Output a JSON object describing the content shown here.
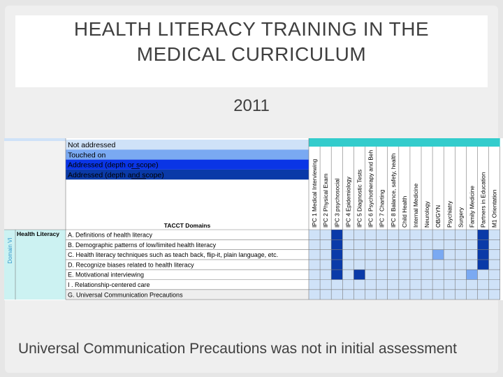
{
  "slide": {
    "title_line1": "HEALTH LITERACY TRAINING IN THE",
    "title_line2": "MEDICAL CURRICULUM",
    "year": "2011",
    "caption": "Universal Communication Precautions was not in initial assessment"
  },
  "legend": [
    {
      "label": "Not addressed",
      "color": "#cfe2f8"
    },
    {
      "label": "Touched on",
      "color": "#7aa9f2"
    },
    {
      "label": "Addressed (depth or scope)",
      "color": "#0a35e6"
    },
    {
      "label": "Addressed (depth and scope)",
      "color": "#0a3aa8"
    }
  ],
  "table": {
    "domains_header": "TACCT Domains",
    "domain_side_label": "Domain VI",
    "domain_name": "Health Literacy",
    "columns": [
      "IPC 1 Medical Interviewing",
      "IPC 2 Physical Exam",
      "IPC 3 psychosocial",
      "IPC 4 Epidemiology",
      "IPC 5 Diagnostic Tests",
      "IPC 6 Psychotherapy and Beh",
      "IPC 7 Charting",
      "IPC 8 Balance, safety, health",
      "Child Health",
      "Internal Medicine",
      "Neurology",
      "OB/GYN",
      "Psychiatry",
      "Surgery",
      "Family Medicine",
      "Partners in Education",
      "M1 Orientation"
    ],
    "rows": [
      {
        "label": "A. Definitions of health literacy",
        "cells": [
          0,
          0,
          3,
          0,
          0,
          0,
          0,
          0,
          0,
          0,
          0,
          0,
          0,
          0,
          0,
          3,
          0
        ]
      },
      {
        "label": "B. Demographic patterns of low/limited health literacy",
        "cells": [
          0,
          0,
          3,
          0,
          0,
          0,
          0,
          0,
          0,
          0,
          0,
          0,
          0,
          0,
          0,
          3,
          0
        ]
      },
      {
        "label": "C. Health literacy techniques such as teach back, flip-it, plain language, etc.",
        "cells": [
          0,
          0,
          3,
          0,
          0,
          0,
          0,
          0,
          0,
          0,
          0,
          1,
          0,
          0,
          0,
          3,
          0
        ]
      },
      {
        "label": "D. Recognize biases related to health literacy",
        "cells": [
          0,
          0,
          3,
          0,
          0,
          0,
          0,
          0,
          0,
          0,
          0,
          0,
          0,
          0,
          0,
          3,
          0
        ]
      },
      {
        "label": "E. Motivational interviewing",
        "cells": [
          0,
          0,
          3,
          0,
          3,
          0,
          0,
          0,
          0,
          0,
          0,
          0,
          0,
          0,
          1,
          0,
          0
        ]
      },
      {
        "label": "I . Relationship-centered care",
        "cells": [
          0,
          0,
          0,
          0,
          0,
          0,
          0,
          0,
          0,
          0,
          0,
          0,
          0,
          0,
          0,
          0,
          0
        ]
      },
      {
        "label": "G. Universal Communication Precautions",
        "cells": [
          0,
          0,
          0,
          0,
          0,
          0,
          0,
          0,
          0,
          0,
          0,
          0,
          0,
          0,
          0,
          0,
          0
        ]
      }
    ]
  }
}
